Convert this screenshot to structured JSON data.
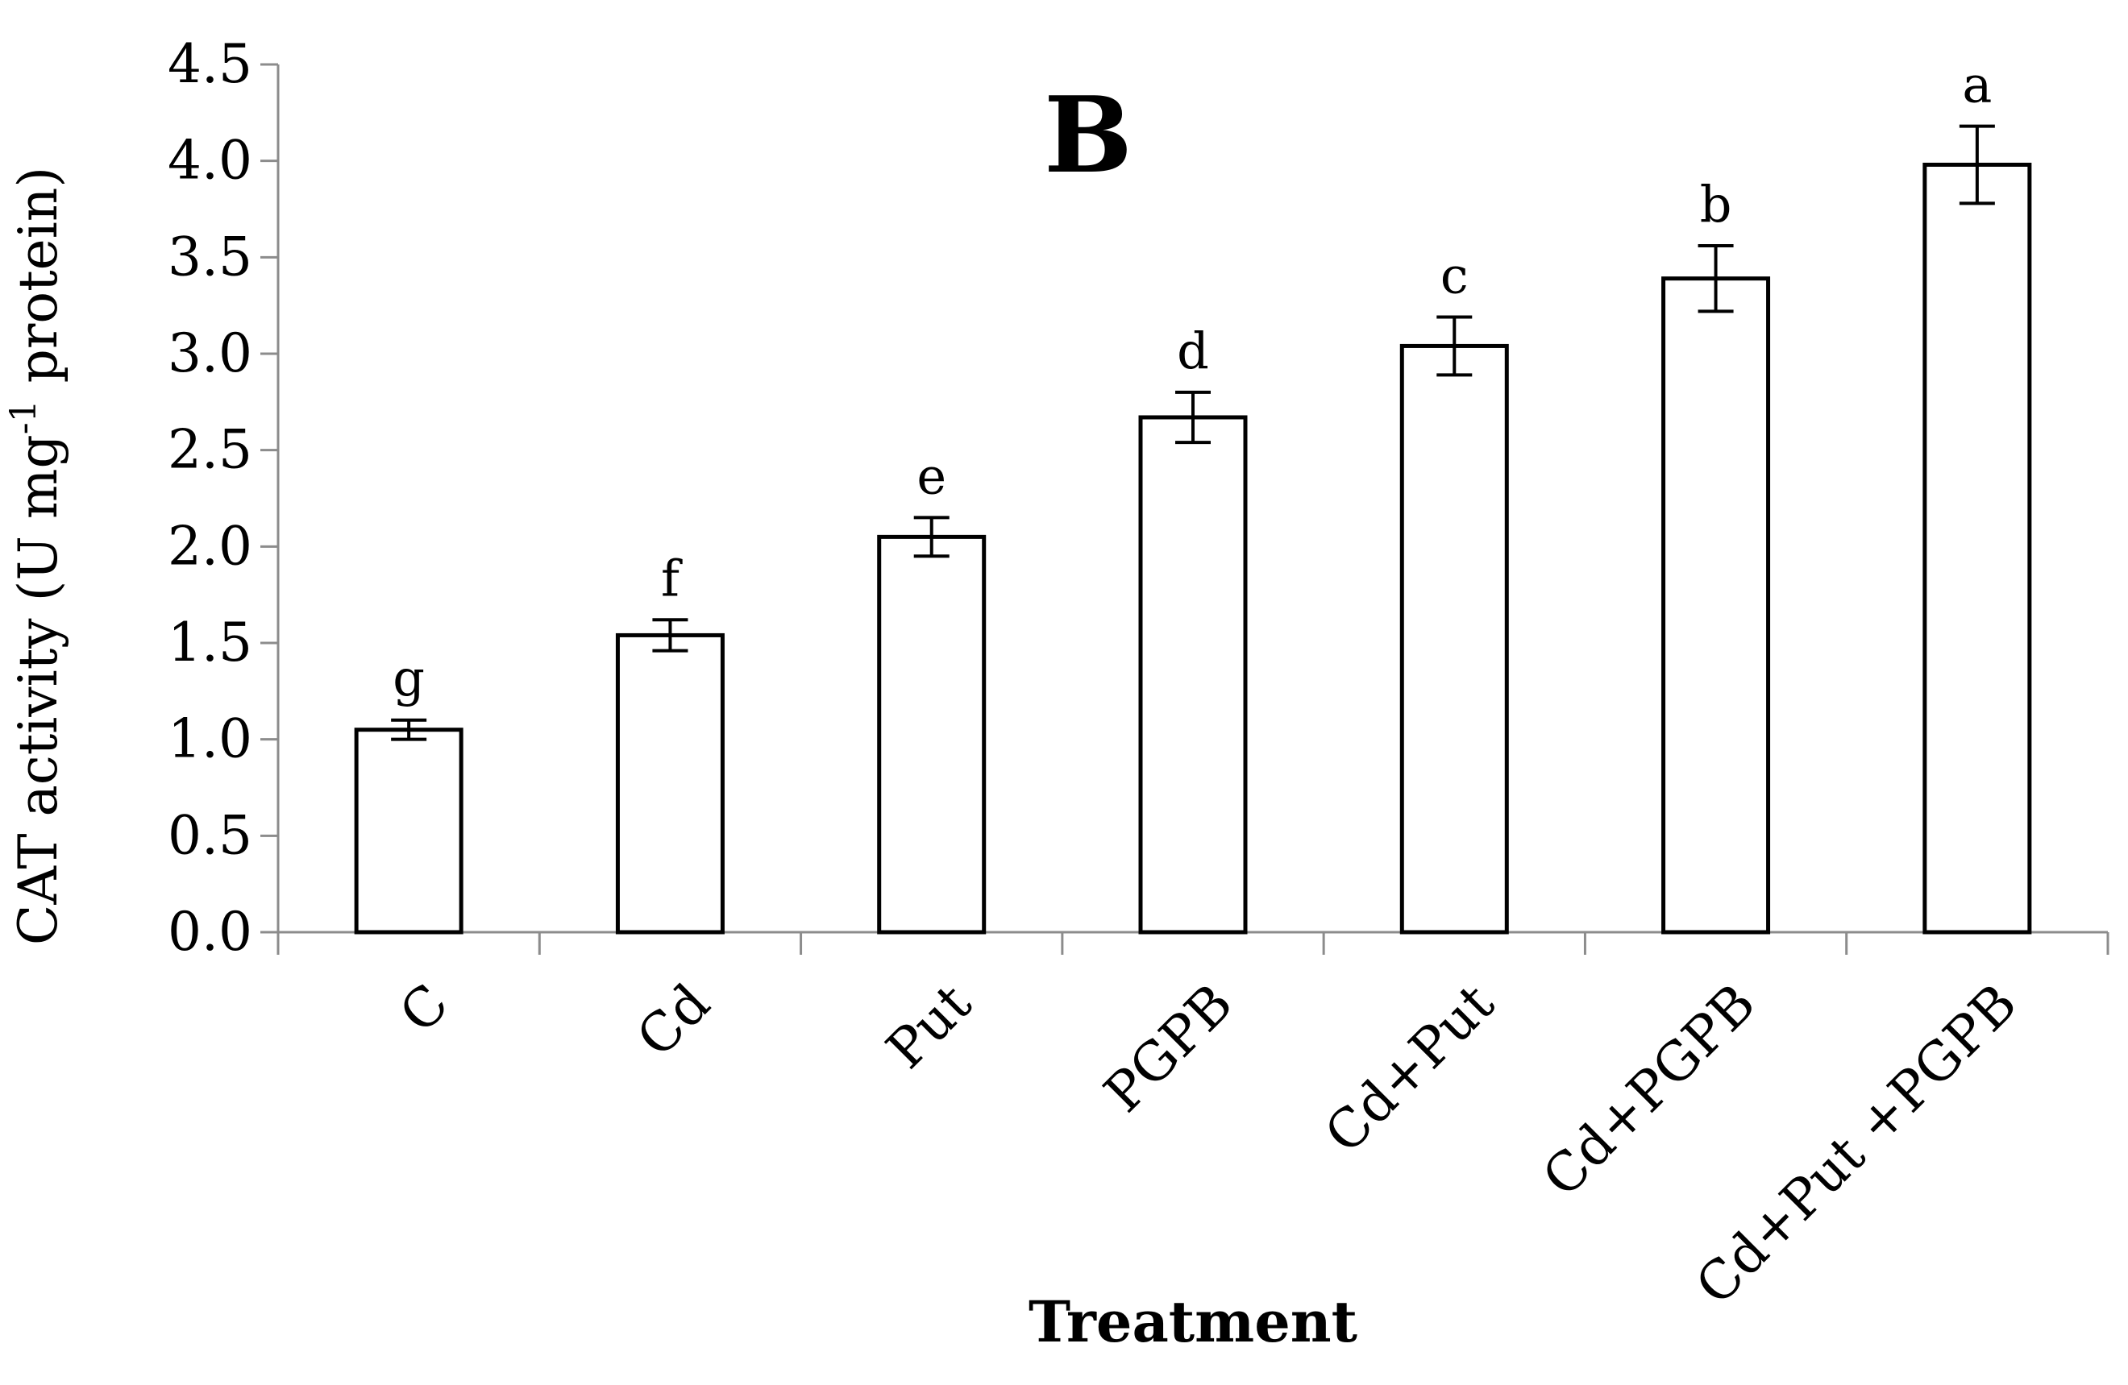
{
  "chart_data": {
    "type": "bar",
    "title": "B",
    "xlabel": "Treatment",
    "ylabel_main": "CAT activity (U mg",
    "ylabel_sup": "-1",
    "ylabel_end": " protein)",
    "ylim": [
      0,
      4.5
    ],
    "yticks": [
      "0.0",
      "0.5",
      "1.0",
      "1.5",
      "2.0",
      "2.5",
      "3.0",
      "3.5",
      "4.0",
      "4.5"
    ],
    "categories": [
      "C",
      "Cd",
      "Put",
      "PGPB",
      "Cd+Put",
      "Cd+PGPB",
      "Cd+Put +PGPB"
    ],
    "values": [
      1.05,
      1.54,
      2.05,
      2.67,
      3.04,
      3.39,
      3.98
    ],
    "errors": [
      0.05,
      0.08,
      0.1,
      0.13,
      0.15,
      0.17,
      0.2
    ],
    "significance": [
      "g",
      "f",
      "e",
      "d",
      "c",
      "b",
      "a"
    ],
    "colors": {
      "bar_fill": "#ffffff",
      "bar_stroke": "#000000",
      "axis": "#8c8c8c"
    }
  }
}
